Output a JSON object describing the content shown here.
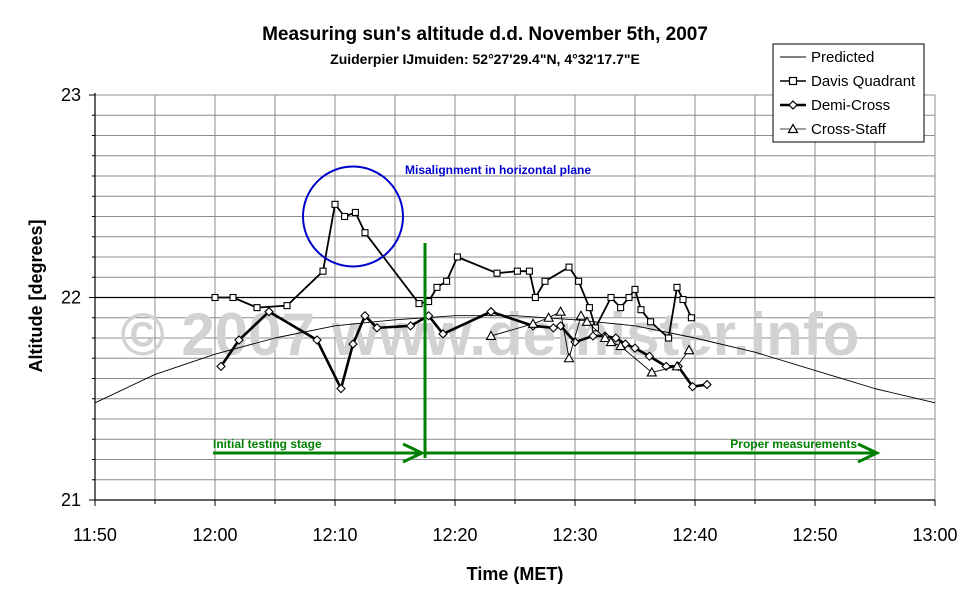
{
  "chart_data": {
    "type": "line",
    "title": "Measuring sun's altitude d.d. November 5th, 2007",
    "subtitle": "Zuiderpier IJmuiden: 52°27'29.4\"N, 4°32'17.7\"E",
    "xlabel": "Time (MET)",
    "ylabel": "Altitude [degrees]",
    "x_range": [
      -10,
      60
    ],
    "ylim": [
      21,
      23
    ],
    "x_ticks": [
      "11:50",
      "12:00",
      "12:10",
      "12:20",
      "12:30",
      "12:40",
      "12:50",
      "13:00"
    ],
    "y_ticks": [
      "21",
      "22",
      "23"
    ],
    "grid": true,
    "legend_position": "top-right",
    "legend": [
      "Predicted",
      "Davis Quadrant",
      "Demi-Cross",
      "Cross-Staff"
    ],
    "watermark": "© 2007 www.demister.info",
    "annotations": {
      "circle_label": "Misalignment in horizontal plane",
      "left_arrow_label": "Initial testing stage",
      "right_arrow_label": "Proper measurements",
      "stage_split_minute": 17.5
    },
    "series": [
      {
        "name": "Predicted",
        "color": "#000000",
        "points": [
          [
            -10,
            21.48
          ],
          [
            -5,
            21.62
          ],
          [
            0,
            21.72
          ],
          [
            5,
            21.8
          ],
          [
            10,
            21.86
          ],
          [
            15,
            21.89
          ],
          [
            20,
            21.91
          ],
          [
            25,
            21.91
          ],
          [
            30,
            21.89
          ],
          [
            35,
            21.86
          ],
          [
            40,
            21.8
          ],
          [
            45,
            21.73
          ],
          [
            50,
            21.64
          ],
          [
            55,
            21.55
          ],
          [
            60,
            21.48
          ]
        ]
      },
      {
        "name": "Davis Quadrant",
        "color": "#000000",
        "points": [
          [
            0,
            22.0
          ],
          [
            1.5,
            22.0
          ],
          [
            3.5,
            21.95
          ],
          [
            6,
            21.96
          ],
          [
            9,
            22.13
          ],
          [
            10,
            22.46
          ],
          [
            10.8,
            22.4
          ],
          [
            11.7,
            22.42
          ],
          [
            12.5,
            22.32
          ],
          [
            17,
            21.97
          ],
          [
            17.8,
            21.98
          ],
          [
            18.5,
            22.05
          ],
          [
            19.3,
            22.08
          ],
          [
            20.2,
            22.2
          ],
          [
            23.5,
            22.12
          ],
          [
            25.2,
            22.13
          ],
          [
            26.2,
            22.13
          ],
          [
            26.7,
            22.0
          ],
          [
            27.5,
            22.08
          ],
          [
            29.5,
            22.15
          ],
          [
            30.3,
            22.08
          ],
          [
            31.2,
            21.95
          ],
          [
            31.7,
            21.85
          ],
          [
            33,
            22.0
          ],
          [
            33.8,
            21.95
          ],
          [
            34.5,
            22.0
          ],
          [
            35,
            22.04
          ],
          [
            35.5,
            21.94
          ],
          [
            36.3,
            21.88
          ],
          [
            37.8,
            21.8
          ],
          [
            38.5,
            22.05
          ],
          [
            39,
            21.99
          ],
          [
            39.7,
            21.9
          ]
        ]
      },
      {
        "name": "Demi-Cross",
        "color": "#000000",
        "points": [
          [
            0.5,
            21.66
          ],
          [
            2,
            21.79
          ],
          [
            4.5,
            21.93
          ],
          [
            8.5,
            21.79
          ],
          [
            10.5,
            21.55
          ],
          [
            11.5,
            21.77
          ],
          [
            12.5,
            21.91
          ],
          [
            13.5,
            21.85
          ],
          [
            16.3,
            21.86
          ],
          [
            17.8,
            21.91
          ],
          [
            19,
            21.82
          ],
          [
            23,
            21.93
          ],
          [
            26.5,
            21.86
          ],
          [
            28.2,
            21.85
          ],
          [
            28.8,
            21.86
          ],
          [
            30,
            21.78
          ],
          [
            31.5,
            21.81
          ],
          [
            32.5,
            21.81
          ],
          [
            33.4,
            21.8
          ],
          [
            34.2,
            21.77
          ],
          [
            35,
            21.75
          ],
          [
            36.2,
            21.71
          ],
          [
            37.6,
            21.66
          ],
          [
            38.6,
            21.66
          ],
          [
            39.8,
            21.56
          ],
          [
            41,
            21.57
          ]
        ]
      },
      {
        "name": "Cross-Staff",
        "color": "#000000",
        "points": [
          [
            23,
            21.81
          ],
          [
            26.5,
            21.87
          ],
          [
            27.8,
            21.9
          ],
          [
            28.8,
            21.93
          ],
          [
            29.5,
            21.7
          ],
          [
            30.5,
            21.91
          ],
          [
            31,
            21.88
          ],
          [
            32.5,
            21.8
          ],
          [
            33,
            21.78
          ],
          [
            33.8,
            21.76
          ],
          [
            36.4,
            21.63
          ],
          [
            38.5,
            21.66
          ],
          [
            39.5,
            21.74
          ]
        ]
      }
    ]
  }
}
